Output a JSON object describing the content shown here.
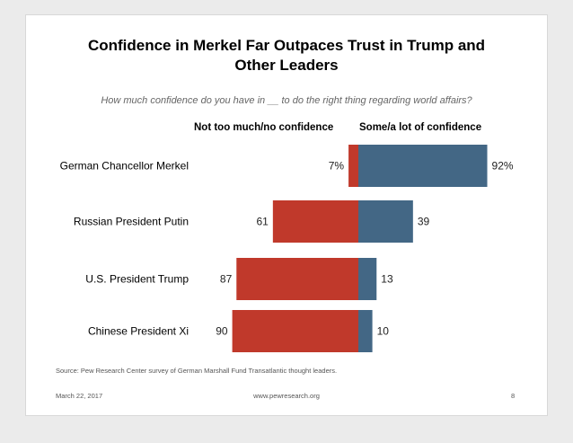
{
  "chart_data": {
    "type": "bar",
    "orientation": "diverging-horizontal",
    "title": "Confidence in Merkel Far Outpaces Trust in Trump and Other Leaders",
    "title_lines": [
      "Confidence in Merkel Far Outpaces Trust in Trump and",
      "Other Leaders"
    ],
    "subtitle": "How much confidence do you have in __ to do the right thing regarding world affairs?",
    "categories": [
      "German Chancellor Merkel",
      "Russian President Putin",
      "U.S. President Trump",
      "Chinese President Xi"
    ],
    "series": [
      {
        "name": "Not too much/no confidence",
        "values": [
          7,
          61,
          87,
          90
        ],
        "labels": [
          "7%",
          "61",
          "87",
          "90"
        ],
        "color": "#c0392b",
        "direction": "left"
      },
      {
        "name": "Some/a lot of confidence",
        "values": [
          92,
          39,
          13,
          10
        ],
        "labels": [
          "92%",
          "39",
          "13",
          "10"
        ],
        "color": "#436785",
        "direction": "right"
      }
    ],
    "xlim": [
      -100,
      100
    ],
    "grid": false,
    "legend": "top"
  },
  "source": "Source: Pew Research Center survey of German Marshall Fund Transatlantic thought leaders.",
  "footer": {
    "date": "March 22, 2017",
    "url": "www.pewresearch.org",
    "page": "8"
  }
}
